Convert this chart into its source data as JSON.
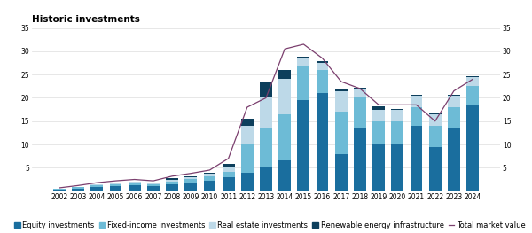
{
  "title": "Historic investments",
  "years": [
    2002,
    2003,
    2004,
    2005,
    2006,
    2007,
    2008,
    2009,
    2010,
    2011,
    2012,
    2013,
    2014,
    2015,
    2016,
    2017,
    2018,
    2019,
    2020,
    2021,
    2022,
    2023,
    2024
  ],
  "equity": [
    0.3,
    0.5,
    0.8,
    1.0,
    1.2,
    1.0,
    1.5,
    1.8,
    2.2,
    3.0,
    4.0,
    5.0,
    6.5,
    19.5,
    21.0,
    8.0,
    13.5,
    10.0,
    10.0,
    14.0,
    9.5,
    13.5,
    18.5
  ],
  "fixed_income": [
    0.2,
    0.3,
    0.5,
    0.5,
    0.6,
    0.5,
    0.6,
    0.8,
    1.0,
    1.2,
    6.0,
    8.5,
    10.0,
    7.5,
    5.0,
    9.0,
    6.5,
    5.0,
    5.0,
    4.0,
    4.5,
    4.5,
    4.0
  ],
  "real_estate": [
    0.1,
    0.1,
    0.2,
    0.3,
    0.3,
    0.2,
    0.4,
    0.4,
    0.5,
    0.8,
    4.0,
    6.5,
    7.5,
    1.5,
    1.5,
    4.5,
    1.8,
    2.5,
    2.5,
    2.5,
    2.5,
    2.5,
    2.0
  ],
  "renewable": [
    0.0,
    0.0,
    0.0,
    0.0,
    0.0,
    0.0,
    0.2,
    0.2,
    0.2,
    0.8,
    1.5,
    3.5,
    2.0,
    0.3,
    0.3,
    0.4,
    0.3,
    0.6,
    0.2,
    0.2,
    0.4,
    0.2,
    0.2
  ],
  "total_market_value": [
    0.7,
    1.2,
    1.8,
    2.2,
    2.5,
    2.2,
    3.2,
    3.8,
    4.5,
    7.0,
    18.0,
    20.0,
    30.5,
    31.5,
    28.5,
    23.5,
    22.0,
    18.5,
    18.5,
    18.5,
    15.0,
    21.5,
    24.0
  ],
  "color_equity": "#1a6e9e",
  "color_fixed_income": "#6dbbd6",
  "color_real_estate": "#bdd9e8",
  "color_renewable": "#0d3f5c",
  "color_line": "#7b3f6e",
  "ylim": [
    0,
    35
  ],
  "yticks": [
    5,
    10,
    15,
    20,
    25,
    30,
    35
  ],
  "background_color": "#ffffff",
  "title_fontsize": 7.5,
  "legend_fontsize": 6,
  "tick_fontsize": 5.5
}
